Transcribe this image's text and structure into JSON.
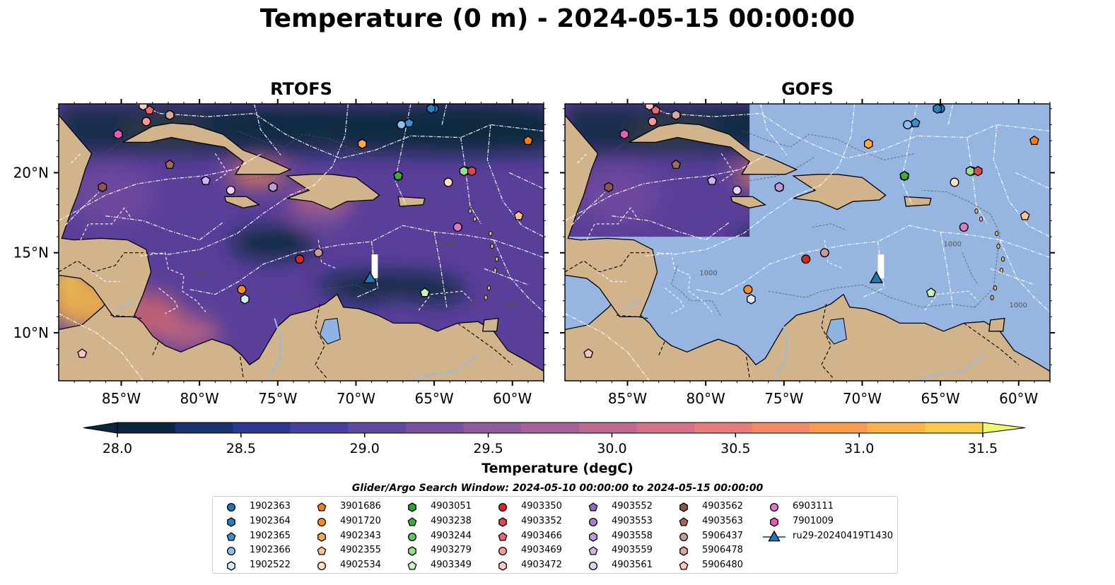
{
  "figure": {
    "title": "Temperature (0 m) - 2024-05-15 00:00:00",
    "panels": [
      "RTOFS",
      "GOFS"
    ],
    "lon_ticks": [
      "85°W",
      "80°W",
      "75°W",
      "70°W",
      "65°W",
      "60°W"
    ],
    "lon_values": [
      -85,
      -80,
      -75,
      -70,
      -65,
      -60
    ],
    "lat_ticks": [
      "10°N",
      "15°N",
      "20°N"
    ],
    "lat_values": [
      10,
      15,
      20
    ],
    "extent": {
      "lon_min": -89,
      "lon_max": -58,
      "lat_min": 7,
      "lat_max": 24.3
    },
    "contour_label": "1000",
    "colors": {
      "land": "#d2b48c",
      "ocean_warm": "#5a3f9a",
      "ocean_cold": "#0f2a40",
      "mask": "#96b5e1",
      "boundary": "#ffffff"
    }
  },
  "colorbar": {
    "label": "Temperature (degC)",
    "ticks": [
      "28.0",
      "28.5",
      "29.0",
      "29.5",
      "30.0",
      "30.5",
      "31.0",
      "31.5"
    ],
    "tick_values": [
      28.0,
      28.5,
      29.0,
      29.5,
      30.0,
      30.5,
      31.0,
      31.5
    ],
    "range": [
      28.0,
      31.5
    ],
    "extend": "both",
    "colors": [
      "#0b2540",
      "#1a3270",
      "#2e3890",
      "#46409e",
      "#5e4aa0",
      "#77529f",
      "#8e5b9c",
      "#a5629a",
      "#bd6a93",
      "#d2728a",
      "#e57d7a",
      "#f28b66",
      "#f89c52",
      "#fbb34a",
      "#f9cc4c",
      "#f2e35a",
      "#ecfa6c"
    ]
  },
  "legend": {
    "title": "Glider/Argo Search Window: 2024-05-10 00:00:00 to 2024-05-15 00:00:00",
    "items": [
      {
        "label": "1902363",
        "marker": "circle",
        "color": "#1f77b4"
      },
      {
        "label": "1902364",
        "marker": "hexagon",
        "color": "#2a7fc0"
      },
      {
        "label": "1902365",
        "marker": "pentagon",
        "color": "#3a8fd4"
      },
      {
        "label": "1902366",
        "marker": "circle",
        "color": "#8ec0ea"
      },
      {
        "label": "1902522",
        "marker": "hexagon",
        "color": "#d6ecfa"
      },
      {
        "label": "3901686",
        "marker": "pentagon",
        "color": "#ff7f0e"
      },
      {
        "label": "4901720",
        "marker": "circle",
        "color": "#ff8c1a"
      },
      {
        "label": "4902343",
        "marker": "hexagon",
        "color": "#ffa94d"
      },
      {
        "label": "4902355",
        "marker": "pentagon",
        "color": "#ffc48c"
      },
      {
        "label": "4902534",
        "marker": "circle",
        "color": "#ffe2c2"
      },
      {
        "label": "4903051",
        "marker": "hexagon",
        "color": "#2ca02c"
      },
      {
        "label": "4903238",
        "marker": "pentagon",
        "color": "#3cae3c"
      },
      {
        "label": "4903244",
        "marker": "circle",
        "color": "#5fc45f"
      },
      {
        "label": "4903279",
        "marker": "hexagon",
        "color": "#98df8a"
      },
      {
        "label": "4903349",
        "marker": "pentagon",
        "color": "#ccf2c0"
      },
      {
        "label": "4903350",
        "marker": "circle",
        "color": "#d62728"
      },
      {
        "label": "4903352",
        "marker": "hexagon",
        "color": "#e0464a"
      },
      {
        "label": "4903466",
        "marker": "pentagon",
        "color": "#ea6a6d"
      },
      {
        "label": "4903469",
        "marker": "circle",
        "color": "#ff9896"
      },
      {
        "label": "4903472",
        "marker": "hexagon",
        "color": "#ffc9c8"
      },
      {
        "label": "4903552",
        "marker": "pentagon",
        "color": "#9467bd"
      },
      {
        "label": "4903553",
        "marker": "circle",
        "color": "#a680cc"
      },
      {
        "label": "4903558",
        "marker": "hexagon",
        "color": "#bb9ddb"
      },
      {
        "label": "4903559",
        "marker": "pentagon",
        "color": "#cfb6ea"
      },
      {
        "label": "4903561",
        "marker": "circle",
        "color": "#e3d3f5"
      },
      {
        "label": "4903562",
        "marker": "hexagon",
        "color": "#8c564b"
      },
      {
        "label": "4903563",
        "marker": "pentagon",
        "color": "#a0695c"
      },
      {
        "label": "5906437",
        "marker": "circle",
        "color": "#c49c94"
      },
      {
        "label": "5906478",
        "marker": "hexagon",
        "color": "#dba89e"
      },
      {
        "label": "5906480",
        "marker": "pentagon",
        "color": "#f7c6c0"
      },
      {
        "label": "6903111",
        "marker": "circle",
        "color": "#e377c2"
      },
      {
        "label": "7901009",
        "marker": "hexagon",
        "color": "#e85cb8"
      },
      {
        "label": "ru29-20240419T1430",
        "marker": "triangle",
        "color": "#1f77b4"
      }
    ]
  },
  "observations": [
    {
      "id": "1902363",
      "lon": -65.0,
      "lat": 24.0
    },
    {
      "id": "1902364",
      "lon": -65.2,
      "lat": 24.0
    },
    {
      "id": "1902365",
      "lon": -66.6,
      "lat": 23.1
    },
    {
      "id": "1902366",
      "lon": -67.1,
      "lat": 23.0
    },
    {
      "id": "1902522",
      "lon": -77.1,
      "lat": 12.1
    },
    {
      "id": "3901686",
      "lon": -59.0,
      "lat": 22.0
    },
    {
      "id": "4901720",
      "lon": -77.3,
      "lat": 12.7
    },
    {
      "id": "4902343",
      "lon": -69.6,
      "lat": 21.8
    },
    {
      "id": "4902355",
      "lon": -59.6,
      "lat": 17.3
    },
    {
      "id": "4902534",
      "lon": -64.1,
      "lat": 19.4
    },
    {
      "id": "4903051",
      "lon": -67.3,
      "lat": 19.8
    },
    {
      "id": "4903238",
      "lon": -67.3,
      "lat": 19.8
    },
    {
      "id": "4903244",
      "lon": -63.0,
      "lat": 20.1
    },
    {
      "id": "4903279",
      "lon": -63.1,
      "lat": 20.1
    },
    {
      "id": "4903349",
      "lon": -65.6,
      "lat": 12.5
    },
    {
      "id": "4903350",
      "lon": -73.6,
      "lat": 14.6
    },
    {
      "id": "4903352",
      "lon": -62.6,
      "lat": 20.1
    },
    {
      "id": "4903466",
      "lon": -83.2,
      "lat": 23.9
    },
    {
      "id": "4903469",
      "lon": -83.4,
      "lat": 23.2
    },
    {
      "id": "4903472",
      "lon": -83.6,
      "lat": 24.2
    },
    {
      "id": "4903552",
      "lon": -75.3,
      "lat": 19.1
    },
    {
      "id": "4903553",
      "lon": -75.3,
      "lat": 19.1
    },
    {
      "id": "4903558",
      "lon": -75.3,
      "lat": 19.1
    },
    {
      "id": "4903559",
      "lon": -79.6,
      "lat": 19.5
    },
    {
      "id": "4903561",
      "lon": -78.0,
      "lat": 18.9
    },
    {
      "id": "4903562",
      "lon": -86.2,
      "lat": 19.1
    },
    {
      "id": "4903563",
      "lon": -81.9,
      "lat": 20.5
    },
    {
      "id": "5906437",
      "lon": -72.4,
      "lat": 15.0
    },
    {
      "id": "5906478",
      "lon": -81.9,
      "lat": 23.6
    },
    {
      "id": "5906480",
      "lon": -87.5,
      "lat": 8.7
    },
    {
      "id": "6903111",
      "lon": -63.5,
      "lat": 16.6
    },
    {
      "id": "7901009",
      "lon": -85.2,
      "lat": 22.4
    },
    {
      "id": "ru29-20240419T1430",
      "lon": -69.1,
      "lat": 13.4
    }
  ]
}
